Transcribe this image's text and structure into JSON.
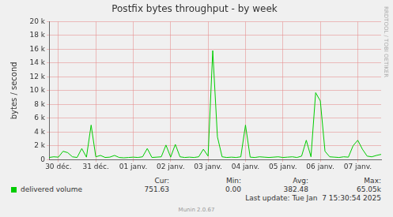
{
  "chart_data": {
    "type": "line",
    "title": "Postfix bytes throughput - by week",
    "y_label": "bytes / second",
    "categories": [
      null,
      null,
      "30 déc.",
      null,
      null,
      null,
      null,
      null,
      null,
      null,
      "31 déc.",
      null,
      null,
      null,
      null,
      null,
      null,
      null,
      "01 janv.",
      null,
      null,
      null,
      null,
      null,
      null,
      null,
      "02 janv.",
      null,
      null,
      null,
      null,
      null,
      null,
      null,
      "03 janv.",
      null,
      null,
      null,
      null,
      null,
      null,
      null,
      "04 janv.",
      null,
      null,
      null,
      null,
      null,
      null,
      null,
      "05 janv.",
      null,
      null,
      null,
      null,
      null,
      null,
      null,
      "06 janv.",
      null,
      null,
      null,
      null,
      null,
      null,
      null,
      "07 janv.",
      null,
      null,
      null,
      null,
      null
    ],
    "series": [
      {
        "name": "delivered volume",
        "color": "#00cc00",
        "values": [
          300,
          400,
          350,
          1200,
          1000,
          400,
          300,
          1600,
          350,
          5000,
          400,
          600,
          300,
          350,
          600,
          300,
          250,
          300,
          350,
          300,
          400,
          1600,
          300,
          350,
          400,
          2100,
          350,
          2200,
          400,
          300,
          350,
          300,
          400,
          1500,
          500,
          15800,
          3300,
          400,
          300,
          350,
          300,
          400,
          5000,
          350,
          300,
          400,
          350,
          300,
          350,
          400,
          300,
          350,
          400,
          300,
          500,
          2800,
          400,
          9700,
          8500,
          1200,
          400,
          350,
          300,
          400,
          350,
          2000,
          2800,
          1500,
          500,
          400,
          600,
          750
        ]
      }
    ],
    "ylim": [
      0,
      20000
    ],
    "yticks": [
      0,
      {
        "value": 2000,
        "label": "2 k"
      },
      {
        "value": 4000,
        "label": "4 k"
      },
      {
        "value": 6000,
        "label": "6 k"
      },
      {
        "value": 8000,
        "label": "8 k"
      },
      {
        "value": 10000,
        "label": "10 k"
      },
      {
        "value": 12000,
        "label": "12 k"
      },
      {
        "value": 14000,
        "label": "14 k"
      },
      {
        "value": 16000,
        "label": "16 k"
      },
      {
        "value": 18000,
        "label": "18 k"
      },
      {
        "value": 20000,
        "label": "20 k"
      }
    ],
    "grid": true,
    "stats": [
      {
        "label": "Cur:",
        "text": "751.63"
      },
      {
        "label": "Min:",
        "text": "0.00"
      },
      {
        "label": "Avg:",
        "text": "382.48"
      },
      {
        "label": "Max:",
        "text": "65.05k"
      }
    ],
    "last_update": "Last update: Tue Jan  7 15:30:54 2025",
    "footer": "Munin 2.0.67",
    "watermark": "RRDTOOL / TOBI OETIKER"
  }
}
